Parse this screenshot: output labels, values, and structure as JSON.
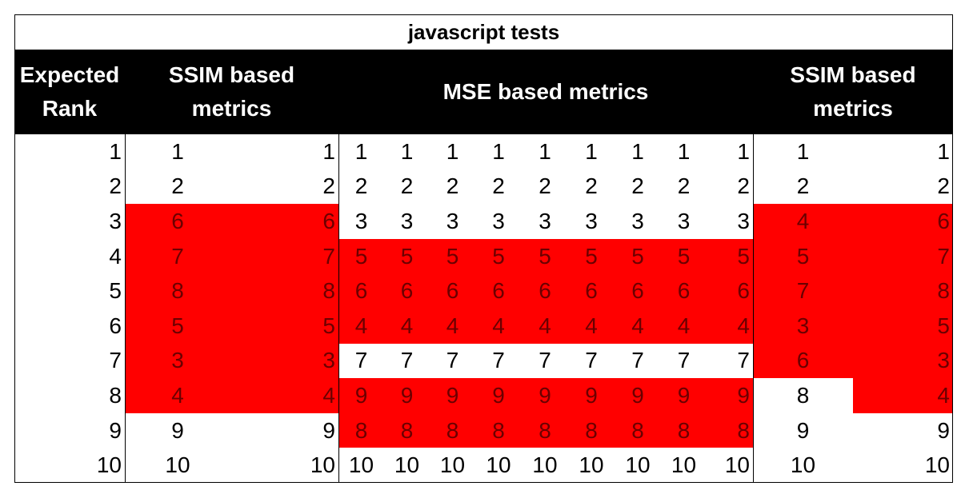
{
  "chart_data": {
    "type": "table",
    "title": "javascript tests",
    "headers": [
      {
        "label": "Expected\nRank",
        "span": 1
      },
      {
        "label": "SSIM based\nmetrics",
        "span": 2
      },
      {
        "label": "MSE based metrics",
        "span": 9
      },
      {
        "label": "SSIM based\nmetrics",
        "span": 2
      }
    ],
    "rows": [
      [
        1,
        1,
        1,
        1,
        1,
        1,
        1,
        1,
        1,
        1,
        1,
        1,
        1,
        1
      ],
      [
        2,
        2,
        2,
        2,
        2,
        2,
        2,
        2,
        2,
        2,
        2,
        2,
        2,
        2
      ],
      [
        3,
        6,
        6,
        3,
        3,
        3,
        3,
        3,
        3,
        3,
        3,
        3,
        4,
        6
      ],
      [
        4,
        7,
        7,
        5,
        5,
        5,
        5,
        5,
        5,
        5,
        5,
        5,
        5,
        7
      ],
      [
        5,
        8,
        8,
        6,
        6,
        6,
        6,
        6,
        6,
        6,
        6,
        6,
        7,
        8
      ],
      [
        6,
        5,
        5,
        4,
        4,
        4,
        4,
        4,
        4,
        4,
        4,
        4,
        3,
        5
      ],
      [
        7,
        3,
        3,
        7,
        7,
        7,
        7,
        7,
        7,
        7,
        7,
        7,
        6,
        3
      ],
      [
        8,
        4,
        4,
        9,
        9,
        9,
        9,
        9,
        9,
        9,
        9,
        9,
        8,
        4
      ],
      [
        9,
        9,
        9,
        8,
        8,
        8,
        8,
        8,
        8,
        8,
        8,
        8,
        9,
        9
      ],
      [
        10,
        10,
        10,
        10,
        10,
        10,
        10,
        10,
        10,
        10,
        10,
        10,
        10,
        10
      ]
    ],
    "highlight_color": "#ff0000",
    "highlight_text_color": "#6b0000"
  }
}
